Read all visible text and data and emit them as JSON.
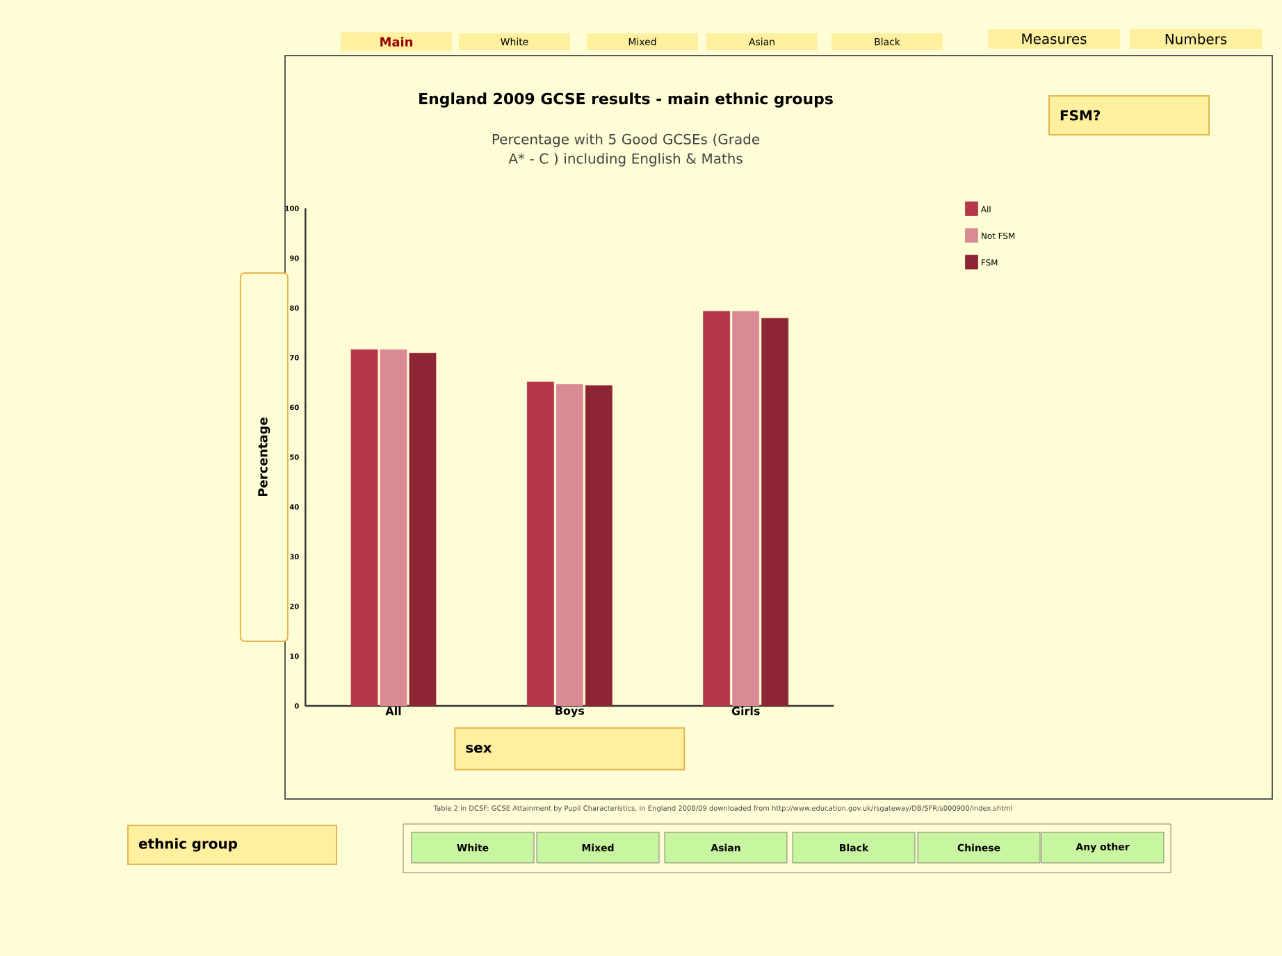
{
  "chart_data": {
    "type": "bar",
    "title": "England 2009 GCSE results - main ethnic groups",
    "subtitle": "Percentage with 5 Good GCSEs (Grade A* - C ) including English & Maths",
    "xlabel": "sex",
    "ylabel": "Percentage",
    "legend_title": "FSM?",
    "categories": [
      "All",
      "Boys",
      "Girls"
    ],
    "series": [
      {
        "name": "All",
        "color": "#b5364a",
        "values": [
          71.6,
          65.1,
          79.3
        ]
      },
      {
        "name": "Not FSM",
        "color": "#d98a93",
        "values": [
          71.6,
          64.6,
          79.3
        ]
      },
      {
        "name": "FSM",
        "color": "#8e2535",
        "values": [
          70.9,
          64.4,
          77.9
        ]
      }
    ],
    "ylim": [
      0,
      100
    ],
    "yticks": [
      0,
      10,
      20,
      30,
      40,
      50,
      60,
      70,
      80,
      90,
      100
    ],
    "grid": false,
    "legend": "top right",
    "annotations": [
      "Main",
      "White",
      "Mixed",
      "Asian",
      "Black",
      "Measures",
      "Numbers",
      "ethnic group",
      "White",
      "Mixed",
      "Asian",
      "Black",
      "Chinese",
      "Any other",
      "Table 2 in DCSF: GCSE Attainment by Pupil Characteristics, in England 2008/09 downloaded from http://www.education.gov.uk/rsgateway/DB/SFR/s000900/index.shtml"
    ]
  }
}
